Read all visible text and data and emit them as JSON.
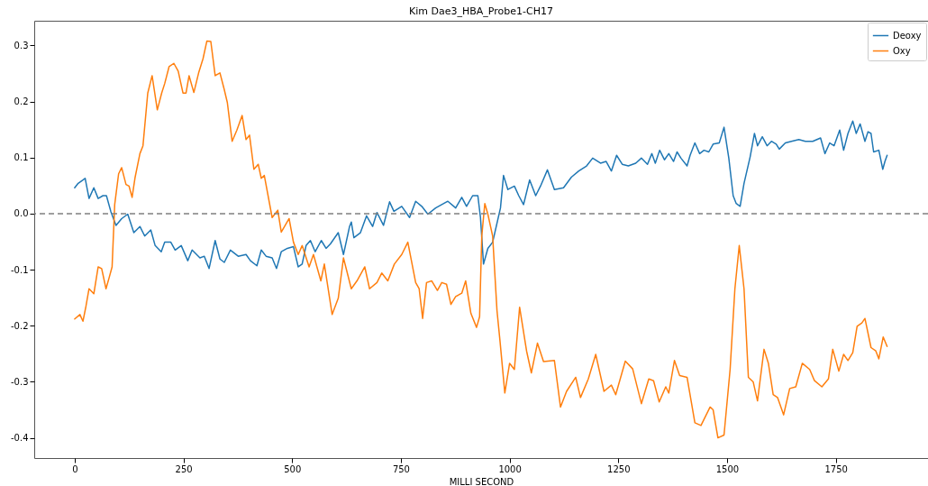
{
  "chart_data": {
    "type": "line",
    "title": "Kim Dae3_HBA_Probe1-CH17",
    "xlabel": "MILLI SECOND",
    "xlim": [
      -93,
      1962
    ],
    "xticks": [
      0,
      250,
      500,
      750,
      1000,
      1250,
      1500,
      1750
    ],
    "ylim": [
      -0.436,
      0.344
    ],
    "yticks": [
      -0.4,
      -0.3,
      -0.2,
      -0.1,
      {
        "value": 0,
        "label": "0.0"
      },
      0.1,
      0.2,
      0.3
    ],
    "legend": "top right",
    "grid": false,
    "line_style": "solid",
    "ref_lines": [
      {
        "axis": "y",
        "value": 0,
        "color": "#808080",
        "line_style": "dashed"
      }
    ],
    "series": [
      {
        "name": "Deoxy",
        "color": "#1f77b4",
        "x": [
          0,
          8,
          19,
          24,
          33,
          44,
          54,
          65,
          73,
          83,
          95,
          108,
          122,
          136,
          150,
          161,
          175,
          185,
          199,
          207,
          221,
          231,
          245,
          260,
          270,
          288,
          298,
          309,
          323,
          334,
          344,
          358,
          376,
          394,
          404,
          419,
          429,
          440,
          454,
          464,
          475,
          489,
          503,
          514,
          523,
          532,
          542,
          553,
          567,
          578,
          588,
          606,
          618,
          632,
          636,
          642,
          657,
          671,
          685,
          695,
          710,
          724,
          734,
          752,
          770,
          784,
          798,
          812,
          830,
          844,
          858,
          876,
          890,
          901,
          915,
          927,
          933,
          940,
          950,
          961,
          979,
          986,
          996,
          1011,
          1021,
          1032,
          1046,
          1060,
          1071,
          1087,
          1103,
          1124,
          1142,
          1159,
          1177,
          1191,
          1209,
          1222,
          1234,
          1246,
          1259,
          1273,
          1290,
          1303,
          1317,
          1327,
          1335,
          1345,
          1356,
          1366,
          1377,
          1385,
          1394,
          1408,
          1415,
          1426,
          1437,
          1447,
          1458,
          1468,
          1482,
          1493,
          1504,
          1514,
          1521,
          1530,
          1539,
          1553,
          1563,
          1570,
          1581,
          1592,
          1602,
          1613,
          1620,
          1634,
          1648,
          1665,
          1680,
          1697,
          1715,
          1725,
          1736,
          1746,
          1759,
          1768,
          1778,
          1789,
          1797,
          1806,
          1817,
          1824,
          1831,
          1837,
          1849,
          1858,
          1863,
          1868
        ],
        "values": [
          0.046,
          0.054,
          0.06,
          0.063,
          0.027,
          0.046,
          0.027,
          0.032,
          0.032,
          0.004,
          -0.021,
          -0.009,
          -0.001,
          -0.034,
          -0.023,
          -0.04,
          -0.029,
          -0.057,
          -0.068,
          -0.051,
          -0.051,
          -0.065,
          -0.057,
          -0.084,
          -0.065,
          -0.079,
          -0.076,
          -0.098,
          -0.048,
          -0.081,
          -0.087,
          -0.065,
          -0.076,
          -0.073,
          -0.084,
          -0.093,
          -0.065,
          -0.076,
          -0.079,
          -0.098,
          -0.068,
          -0.062,
          -0.059,
          -0.095,
          -0.09,
          -0.057,
          -0.048,
          -0.068,
          -0.048,
          -0.062,
          -0.054,
          -0.034,
          -0.073,
          -0.023,
          -0.015,
          -0.043,
          -0.034,
          -0.004,
          -0.023,
          0.002,
          -0.021,
          0.021,
          0.004,
          0.013,
          -0.007,
          0.022,
          0.013,
          -0.001,
          0.01,
          0.016,
          0.022,
          0.01,
          0.029,
          0.013,
          0.032,
          0.032,
          -0.007,
          -0.09,
          -0.062,
          -0.051,
          0.01,
          0.068,
          0.043,
          0.049,
          0.032,
          0.016,
          0.06,
          0.032,
          0.049,
          0.078,
          0.043,
          0.046,
          0.065,
          0.076,
          0.085,
          0.099,
          0.09,
          0.093,
          0.076,
          0.104,
          0.088,
          0.085,
          0.09,
          0.099,
          0.088,
          0.107,
          0.09,
          0.113,
          0.096,
          0.107,
          0.093,
          0.11,
          0.099,
          0.085,
          0.104,
          0.126,
          0.107,
          0.113,
          0.11,
          0.124,
          0.126,
          0.154,
          0.099,
          0.032,
          0.018,
          0.013,
          0.054,
          0.101,
          0.143,
          0.121,
          0.137,
          0.121,
          0.129,
          0.124,
          0.115,
          0.126,
          0.129,
          0.132,
          0.129,
          0.129,
          0.135,
          0.107,
          0.126,
          0.121,
          0.149,
          0.113,
          0.143,
          0.165,
          0.143,
          0.16,
          0.129,
          0.146,
          0.143,
          0.11,
          0.113,
          0.079,
          0.093,
          0.104
        ]
      },
      {
        "name": "Oxy",
        "color": "#ff7f0e",
        "x": [
          0,
          12,
          19,
          26,
          33,
          44,
          54,
          62,
          72,
          79,
          86,
          92,
          101,
          108,
          118,
          125,
          132,
          139,
          150,
          157,
          168,
          178,
          190,
          200,
          207,
          217,
          228,
          238,
          249,
          256,
          263,
          274,
          285,
          295,
          304,
          313,
          323,
          334,
          344,
          351,
          362,
          373,
          385,
          394,
          402,
          412,
          422,
          429,
          436,
          454,
          467,
          475,
          493,
          503,
          514,
          523,
          539,
          549,
          566,
          574,
          592,
          606,
          618,
          636,
          649,
          667,
          678,
          695,
          706,
          720,
          735,
          752,
          766,
          784,
          792,
          800,
          809,
          821,
          834,
          844,
          855,
          865,
          876,
          890,
          899,
          911,
          924,
          931,
          936,
          943,
          950,
          961,
          971,
          978,
          989,
          1000,
          1011,
          1023,
          1039,
          1050,
          1064,
          1078,
          1103,
          1117,
          1131,
          1152,
          1163,
          1181,
          1198,
          1217,
          1234,
          1244,
          1266,
          1283,
          1303,
          1320,
          1331,
          1344,
          1359,
          1366,
          1379,
          1391,
          1408,
          1426,
          1440,
          1461,
          1468,
          1479,
          1493,
          1507,
          1518,
          1528,
          1539,
          1549,
          1560,
          1570,
          1585,
          1595,
          1606,
          1616,
          1630,
          1644,
          1658,
          1673,
          1690,
          1701,
          1718,
          1733,
          1743,
          1757,
          1768,
          1778,
          1789,
          1799,
          1810,
          1817,
          1831,
          1842,
          1849,
          1859,
          1868
        ],
        "values": [
          -0.188,
          -0.18,
          -0.192,
          -0.165,
          -0.134,
          -0.143,
          -0.095,
          -0.098,
          -0.134,
          -0.115,
          -0.095,
          0.016,
          0.071,
          0.082,
          0.052,
          0.049,
          0.029,
          0.065,
          0.107,
          0.121,
          0.215,
          0.246,
          0.185,
          0.215,
          0.232,
          0.262,
          0.268,
          0.254,
          0.215,
          0.215,
          0.246,
          0.216,
          0.251,
          0.276,
          0.308,
          0.307,
          0.246,
          0.251,
          0.221,
          0.198,
          0.129,
          0.149,
          0.175,
          0.132,
          0.14,
          0.079,
          0.088,
          0.063,
          0.068,
          -0.007,
          0.006,
          -0.033,
          -0.009,
          -0.051,
          -0.073,
          -0.057,
          -0.095,
          -0.073,
          -0.12,
          -0.09,
          -0.18,
          -0.151,
          -0.079,
          -0.134,
          -0.12,
          -0.095,
          -0.134,
          -0.123,
          -0.106,
          -0.12,
          -0.09,
          -0.073,
          -0.051,
          -0.123,
          -0.134,
          -0.187,
          -0.123,
          -0.12,
          -0.137,
          -0.123,
          -0.126,
          -0.162,
          -0.148,
          -0.142,
          -0.12,
          -0.178,
          -0.203,
          -0.184,
          -0.04,
          0.018,
          -0.001,
          -0.04,
          -0.173,
          -0.228,
          -0.32,
          -0.267,
          -0.278,
          -0.167,
          -0.245,
          -0.284,
          -0.231,
          -0.264,
          -0.262,
          -0.345,
          -0.317,
          -0.292,
          -0.328,
          -0.295,
          -0.251,
          -0.317,
          -0.306,
          -0.323,
          -0.263,
          -0.277,
          -0.339,
          -0.295,
          -0.298,
          -0.336,
          -0.309,
          -0.32,
          -0.262,
          -0.289,
          -0.292,
          -0.373,
          -0.378,
          -0.345,
          -0.35,
          -0.4,
          -0.395,
          -0.278,
          -0.134,
          -0.057,
          -0.134,
          -0.292,
          -0.3,
          -0.334,
          -0.242,
          -0.267,
          -0.323,
          -0.328,
          -0.359,
          -0.312,
          -0.309,
          -0.267,
          -0.278,
          -0.298,
          -0.309,
          -0.295,
          -0.242,
          -0.281,
          -0.251,
          -0.262,
          -0.248,
          -0.201,
          -0.195,
          -0.187,
          -0.239,
          -0.245,
          -0.259,
          -0.22,
          -0.237
        ]
      }
    ]
  }
}
